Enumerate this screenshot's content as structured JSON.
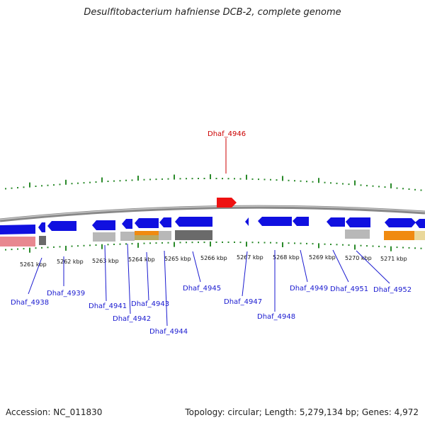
{
  "title": "Desulfitobacterium hafniense DCB-2, complete genome",
  "footer": {
    "accession": "Accession: NC_011830",
    "topology": "Topology: circular; Length: 5,279,134 bp; Genes: 4,972"
  },
  "colors": {
    "axis": "#888888",
    "tick": "#2a8a2a",
    "gene_forward": "#1010e0",
    "gene_highlight": "#ee1111",
    "label": "#1a1ad0",
    "label_highlight": "#cc0000",
    "feature_pink": "#e88890",
    "feature_grey": "#b8b8b8",
    "feature_dark": "#6a6a6a",
    "feature_orange": "#f08a10",
    "feature_olive": "#b9a860",
    "feature_yellow": "#ead89a"
  },
  "kbp_labels": [
    "5261 kbp",
    "5262 kbp",
    "5263 kbp",
    "5264 kbp",
    "5265 kbp",
    "5266 kbp",
    "5267 kbp",
    "5268 kbp",
    "5269 kbp",
    "5270 kbp",
    "5271 kbp"
  ],
  "highlight_label": "Dhaf_4946",
  "gene_labels": [
    "Dhaf_4938",
    "Dhaf_4939",
    "Dhaf_4941",
    "Dhaf_4942",
    "Dhaf_4943",
    "Dhaf_4944",
    "Dhaf_4945",
    "Dhaf_4947",
    "Dhaf_4948",
    "Dhaf_4949",
    "Dhaf_4951",
    "Dhaf_4952"
  ]
}
